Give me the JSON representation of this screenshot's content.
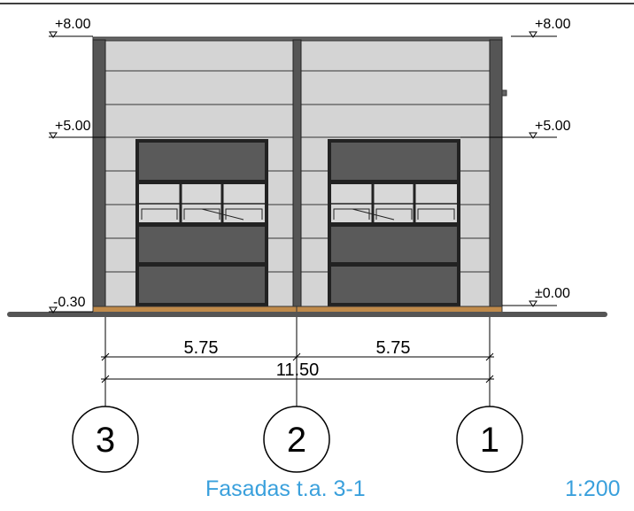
{
  "levels": {
    "top_left": "+8.00",
    "top_right": "+8.00",
    "mid_left": "+5.00",
    "mid_right": "+5.00",
    "ground_left": "-0.30",
    "ground_right": "±0.00"
  },
  "dimensions": {
    "span_left": "5.75",
    "span_right": "5.75",
    "total": "11.50"
  },
  "axes": [
    "3",
    "2",
    "1"
  ],
  "title": {
    "name": "Fasadas t.a. 3-1",
    "scale": "1:200"
  },
  "colors": {
    "cladding": "#d4d4d4",
    "frame": "#555555",
    "door": "#5a5a5a",
    "plinth": "#c08a4a",
    "title": "#3aa0dc"
  }
}
